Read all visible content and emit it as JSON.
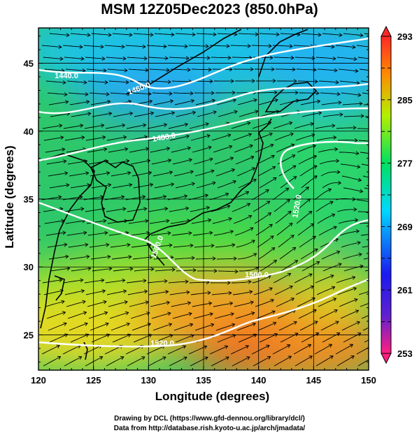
{
  "title": "MSM 12Z05Dec2023 (850.0hPa)",
  "axes": {
    "xlabel": "Longitude (degrees)",
    "ylabel": "Latitude  (degrees)",
    "xticks": [
      "120",
      "125",
      "130",
      "135",
      "140",
      "145",
      "150"
    ],
    "yticks": [
      "25",
      "30",
      "35",
      "40",
      "45"
    ],
    "xrange": [
      120,
      150
    ],
    "yrange": [
      22.4,
      47.6
    ]
  },
  "colorbar": {
    "labels": [
      "293",
      "285",
      "277",
      "269",
      "261",
      "253"
    ],
    "range": [
      253,
      293
    ],
    "colors": [
      "#ff2080",
      "#1a1af0",
      "#00d8ff",
      "#00e060",
      "#b4f000",
      "#ff8c00",
      "#ff2828"
    ]
  },
  "contours": {
    "labels": [
      "1440.0",
      "1460.0",
      "1480.0",
      "1500.0",
      "1520.0",
      "1500.0",
      "1520.0"
    ],
    "color": "#ffffff"
  },
  "credits": {
    "line1": "Drawing by DCL (https://www.gfd-dennou.org/library/dcl/)",
    "line2": "Data from http://database.rish.kyoto-u.ac.jp/arch/jmadata/"
  }
}
